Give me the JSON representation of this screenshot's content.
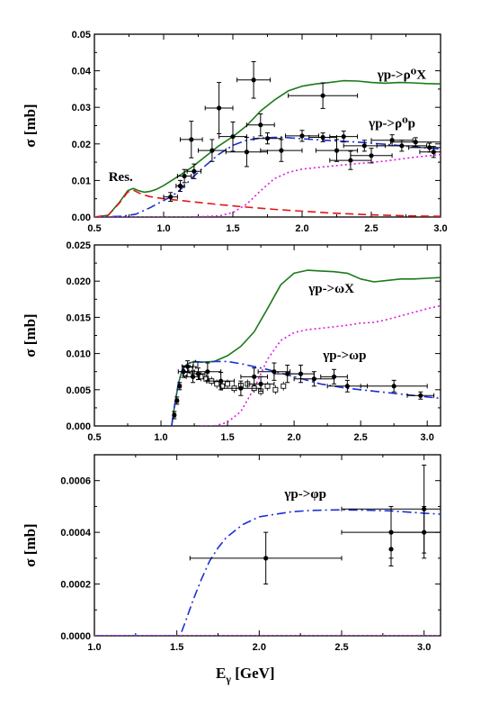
{
  "figure": {
    "xlabel_main": "E",
    "xlabel_sub": "γ",
    "xlabel_unit": " [GeV]"
  },
  "chart_data": [
    {
      "type": "line",
      "ylabel": "σ [mb]",
      "xlim": [
        0.5,
        3.0
      ],
      "ylim": [
        0,
        0.05
      ],
      "xticks": [
        "0.5",
        "1.0",
        "1.5",
        "2.0",
        "2.5",
        "3.0"
      ],
      "xtick_values": [
        0.5,
        1.0,
        1.5,
        2.0,
        2.5,
        3.0
      ],
      "yticks": [
        "0.00",
        "0.01",
        "0.02",
        "0.03",
        "0.04",
        "0.05"
      ],
      "ytick_values": [
        0,
        0.01,
        0.02,
        0.03,
        0.04,
        0.05
      ],
      "annotations": [
        {
          "text": "γp->ρ⁰X",
          "x": 2.72,
          "y": 0.0378
        },
        {
          "text": "γp->ρ⁰p",
          "x": 2.65,
          "y": 0.0245
        },
        {
          "text": "Res.",
          "x": 0.69,
          "y": 0.0098
        }
      ],
      "series": [
        {
          "color": "#1a7a1a",
          "style": "solid",
          "x": [
            0.5,
            0.6,
            0.68,
            0.74,
            0.78,
            0.82,
            0.86,
            0.9,
            0.95,
            1.0,
            1.1,
            1.2,
            1.3,
            1.4,
            1.5,
            1.6,
            1.7,
            1.8,
            1.9,
            2.0,
            2.1,
            2.2,
            2.3,
            2.4,
            2.5,
            2.6,
            2.7,
            2.8,
            2.9,
            3.0
          ],
          "y": [
            0.0,
            0.0005,
            0.004,
            0.0072,
            0.0078,
            0.0072,
            0.0068,
            0.007,
            0.0076,
            0.0086,
            0.011,
            0.0135,
            0.0165,
            0.0195,
            0.022,
            0.025,
            0.029,
            0.032,
            0.0345,
            0.0358,
            0.0364,
            0.0368,
            0.0373,
            0.0372,
            0.0368,
            0.0366,
            0.0368,
            0.0367,
            0.0365,
            0.0364
          ]
        },
        {
          "color": "#1a2fd6",
          "style": "dashdot",
          "x": [
            0.5,
            0.7,
            0.8,
            0.9,
            1.0,
            1.05,
            1.1,
            1.15,
            1.2,
            1.3,
            1.4,
            1.5,
            1.6,
            1.7,
            1.8,
            1.9,
            2.0,
            2.2,
            2.4,
            2.6,
            2.8,
            3.0
          ],
          "y": [
            0.0,
            0.0002,
            0.0008,
            0.0025,
            0.0045,
            0.0055,
            0.0068,
            0.0085,
            0.0105,
            0.014,
            0.0172,
            0.0196,
            0.021,
            0.0216,
            0.0218,
            0.0217,
            0.0214,
            0.0209,
            0.0205,
            0.0199,
            0.0192,
            0.0186
          ]
        },
        {
          "color": "#e01818",
          "style": "dashed",
          "x": [
            0.5,
            0.6,
            0.68,
            0.74,
            0.78,
            0.82,
            0.86,
            0.9,
            1.0,
            1.2,
            1.4,
            1.6,
            1.8,
            2.0,
            2.2,
            2.5,
            2.8,
            3.0
          ],
          "y": [
            0.0,
            0.0005,
            0.0038,
            0.0068,
            0.0074,
            0.0066,
            0.006,
            0.0056,
            0.005,
            0.0042,
            0.0034,
            0.0027,
            0.0021,
            0.0016,
            0.0011,
            0.0006,
            0.0003,
            0.0002
          ]
        },
        {
          "color": "#e018e0",
          "style": "dotted",
          "x": [
            0.5,
            1.2,
            1.4,
            1.5,
            1.6,
            1.7,
            1.8,
            1.9,
            2.0,
            2.2,
            2.4,
            2.6,
            2.8,
            3.0
          ],
          "y": [
            0.0,
            0.0,
            0.0003,
            0.0012,
            0.0035,
            0.0072,
            0.0105,
            0.0122,
            0.0131,
            0.0139,
            0.0146,
            0.0153,
            0.0163,
            0.0171
          ]
        }
      ],
      "points": [
        {
          "x": 1.05,
          "y": 0.0055,
          "ex": 0.05,
          "ey": 0.0012
        },
        {
          "x": 1.12,
          "y": 0.0085,
          "ex": 0.03,
          "ey": 0.0015
        },
        {
          "x": 1.15,
          "y": 0.0112,
          "ex": 0.05,
          "ey": 0.0018
        },
        {
          "x": 1.22,
          "y": 0.0125,
          "ex": 0.05,
          "ey": 0.002
        },
        {
          "x": 1.2,
          "y": 0.0212,
          "ex": 0.08,
          "ey": 0.005
        },
        {
          "x": 1.35,
          "y": 0.0182,
          "ex": 0.1,
          "ey": 0.003
        },
        {
          "x": 1.4,
          "y": 0.0298,
          "ex": 0.1,
          "ey": 0.007
        },
        {
          "x": 1.5,
          "y": 0.022,
          "ex": 0.1,
          "ey": 0.004
        },
        {
          "x": 1.6,
          "y": 0.0178,
          "ex": 0.15,
          "ey": 0.004
        },
        {
          "x": 1.65,
          "y": 0.0375,
          "ex": 0.12,
          "ey": 0.005
        },
        {
          "x": 1.7,
          "y": 0.0252,
          "ex": 0.1,
          "ey": 0.003
        },
        {
          "x": 1.75,
          "y": 0.0215,
          "ex": 0.1,
          "ey": 0.0015
        },
        {
          "x": 1.85,
          "y": 0.0182,
          "ex": 0.15,
          "ey": 0.003
        },
        {
          "x": 2.0,
          "y": 0.0222,
          "ex": 0.12,
          "ey": 0.0015
        },
        {
          "x": 2.15,
          "y": 0.0218,
          "ex": 0.1,
          "ey": 0.0012
        },
        {
          "x": 2.15,
          "y": 0.0332,
          "ex": 0.25,
          "ey": 0.0035
        },
        {
          "x": 2.25,
          "y": 0.0182,
          "ex": 0.15,
          "ey": 0.003
        },
        {
          "x": 2.3,
          "y": 0.022,
          "ex": 0.1,
          "ey": 0.0015
        },
        {
          "x": 2.35,
          "y": 0.0155,
          "ex": 0.15,
          "ey": 0.0025
        },
        {
          "x": 2.45,
          "y": 0.0195,
          "ex": 0.15,
          "ey": 0.0015
        },
        {
          "x": 2.5,
          "y": 0.0168,
          "ex": 0.15,
          "ey": 0.002
        },
        {
          "x": 2.65,
          "y": 0.021,
          "ex": 0.15,
          "ey": 0.0015
        },
        {
          "x": 2.72,
          "y": 0.0195,
          "ex": 0.18,
          "ey": 0.0015
        },
        {
          "x": 2.82,
          "y": 0.0205,
          "ex": 0.18,
          "ey": 0.0012
        },
        {
          "x": 2.92,
          "y": 0.019,
          "ex": 0.15,
          "ey": 0.0012
        },
        {
          "x": 2.95,
          "y": 0.0178,
          "ex": 0.1,
          "ey": 0.0015
        }
      ]
    },
    {
      "type": "line",
      "ylabel": "σ [mb]",
      "xlim": [
        0.5,
        3.1
      ],
      "ylim": [
        0,
        0.025
      ],
      "xticks": [
        "0.5",
        "1.0",
        "1.5",
        "2.0",
        "2.5",
        "3.0"
      ],
      "xtick_values": [
        0.5,
        1.0,
        1.5,
        2.0,
        2.5,
        3.0
      ],
      "yticks": [
        "0.000",
        "0.005",
        "0.010",
        "0.015",
        "0.020",
        "0.025"
      ],
      "ytick_values": [
        0,
        0.005,
        0.01,
        0.015,
        0.02,
        0.025
      ],
      "annotations": [
        {
          "text": "γp->ωX",
          "x": 2.28,
          "y": 0.0184
        },
        {
          "text": "γp->ωp",
          "x": 2.38,
          "y": 0.0092
        }
      ],
      "series": [
        {
          "color": "#1a7a1a",
          "style": "solid",
          "x": [
            1.08,
            1.1,
            1.13,
            1.16,
            1.2,
            1.25,
            1.3,
            1.4,
            1.5,
            1.6,
            1.7,
            1.8,
            1.9,
            2.0,
            2.1,
            2.2,
            2.3,
            2.4,
            2.5,
            2.6,
            2.7,
            2.8,
            2.9,
            3.0,
            3.1
          ],
          "y": [
            0.0,
            0.0025,
            0.0058,
            0.0078,
            0.0086,
            0.0089,
            0.0088,
            0.0089,
            0.0097,
            0.011,
            0.013,
            0.0162,
            0.0195,
            0.0211,
            0.0215,
            0.0214,
            0.0213,
            0.0211,
            0.0203,
            0.0199,
            0.0201,
            0.0203,
            0.0203,
            0.0204,
            0.0205
          ]
        },
        {
          "color": "#1a2fd6",
          "style": "dashdot",
          "x": [
            1.08,
            1.1,
            1.13,
            1.16,
            1.2,
            1.25,
            1.3,
            1.4,
            1.5,
            1.6,
            1.8,
            2.0,
            2.2,
            2.4,
            2.6,
            2.8,
            3.0,
            3.1
          ],
          "y": [
            0.0,
            0.0025,
            0.0058,
            0.0078,
            0.0086,
            0.0089,
            0.0088,
            0.0089,
            0.0089,
            0.0086,
            0.0078,
            0.0068,
            0.0058,
            0.0052,
            0.0048,
            0.0044,
            0.004,
            0.0038
          ]
        },
        {
          "color": "#e018e0",
          "style": "dotted",
          "x": [
            1.3,
            1.4,
            1.5,
            1.6,
            1.7,
            1.8,
            1.9,
            2.0,
            2.1,
            2.2,
            2.3,
            2.4,
            2.5,
            2.6,
            2.7,
            2.8,
            2.9,
            3.0,
            3.1
          ],
          "y": [
            0.0,
            0.0,
            0.0005,
            0.002,
            0.0052,
            0.0092,
            0.0118,
            0.0129,
            0.0133,
            0.0135,
            0.0137,
            0.0139,
            0.0142,
            0.0143,
            0.0147,
            0.0152,
            0.0157,
            0.0162,
            0.0166
          ]
        }
      ],
      "points": [
        {
          "x": 1.1,
          "y": 0.0015,
          "ex": 0.01,
          "ey": 0.0005
        },
        {
          "x": 1.12,
          "y": 0.0035,
          "ex": 0.01,
          "ey": 0.0005
        },
        {
          "x": 1.14,
          "y": 0.0055,
          "ex": 0.01,
          "ey": 0.0005
        },
        {
          "x": 1.17,
          "y": 0.0075,
          "ex": 0.04,
          "ey": 0.0008
        },
        {
          "x": 1.2,
          "y": 0.0082,
          "ex": 0.04,
          "ey": 0.0008
        },
        {
          "x": 1.24,
          "y": 0.0068,
          "ex": 0.05,
          "ey": 0.0008
        },
        {
          "x": 1.28,
          "y": 0.0072,
          "ex": 0.05,
          "ey": 0.0008
        },
        {
          "x": 1.35,
          "y": 0.0075,
          "ex": 0.1,
          "ey": 0.0012
        },
        {
          "x": 1.45,
          "y": 0.0062,
          "ex": 0.1,
          "ey": 0.0012
        },
        {
          "x": 1.6,
          "y": 0.0052,
          "ex": 0.15,
          "ey": 0.001
        },
        {
          "x": 1.7,
          "y": 0.0068,
          "ex": 0.1,
          "ey": 0.0012
        },
        {
          "x": 1.75,
          "y": 0.0058,
          "ex": 0.1,
          "ey": 0.001
        },
        {
          "x": 1.85,
          "y": 0.0075,
          "ex": 0.12,
          "ey": 0.0012
        },
        {
          "x": 1.95,
          "y": 0.0072,
          "ex": 0.1,
          "ey": 0.0012
        },
        {
          "x": 2.05,
          "y": 0.0072,
          "ex": 0.1,
          "ey": 0.0012
        },
        {
          "x": 2.15,
          "y": 0.0065,
          "ex": 0.15,
          "ey": 0.001
        },
        {
          "x": 2.3,
          "y": 0.0068,
          "ex": 0.1,
          "ey": 0.001
        },
        {
          "x": 2.4,
          "y": 0.0055,
          "ex": 0.15,
          "ey": 0.0008
        },
        {
          "x": 2.75,
          "y": 0.0055,
          "ex": 0.25,
          "ey": 0.0008
        },
        {
          "x": 2.95,
          "y": 0.0042,
          "ex": 0.1,
          "ey": 0.0005
        }
      ],
      "open_points": [
        {
          "x": 1.18,
          "y": 0.0072
        },
        {
          "x": 1.22,
          "y": 0.0078
        },
        {
          "x": 1.26,
          "y": 0.0085
        },
        {
          "x": 1.3,
          "y": 0.0068
        },
        {
          "x": 1.34,
          "y": 0.0065
        },
        {
          "x": 1.38,
          "y": 0.0062
        },
        {
          "x": 1.42,
          "y": 0.0058
        },
        {
          "x": 1.46,
          "y": 0.0055
        },
        {
          "x": 1.5,
          "y": 0.0058
        },
        {
          "x": 1.55,
          "y": 0.0052
        },
        {
          "x": 1.6,
          "y": 0.0056
        },
        {
          "x": 1.65,
          "y": 0.0058
        },
        {
          "x": 1.7,
          "y": 0.0052
        },
        {
          "x": 1.75,
          "y": 0.0048
        },
        {
          "x": 1.8,
          "y": 0.0055
        },
        {
          "x": 1.86,
          "y": 0.005
        },
        {
          "x": 1.92,
          "y": 0.0055
        }
      ]
    },
    {
      "type": "line",
      "ylabel": "σ [mb]",
      "xlim": [
        1.0,
        3.1
      ],
      "ylim": [
        0,
        0.0007
      ],
      "xticks": [
        "1.0",
        "1.5",
        "2.0",
        "2.5",
        "3.0"
      ],
      "xtick_values": [
        1.0,
        1.5,
        2.0,
        2.5,
        3.0
      ],
      "yticks": [
        "0.0000",
        "0.0002",
        "0.0004",
        "0.0006"
      ],
      "ytick_values": [
        0,
        0.0002,
        0.0004,
        0.0006
      ],
      "annotations": [
        {
          "text": "γp->φp",
          "x": 2.28,
          "y": 0.000532
        }
      ],
      "series": [
        {
          "color": "#1a2fd6",
          "style": "dashdot",
          "x": [
            1.0,
            1.52,
            1.55,
            1.6,
            1.65,
            1.7,
            1.75,
            1.8,
            1.9,
            2.0,
            2.1,
            2.2,
            2.3,
            2.4,
            2.5,
            2.6,
            2.8,
            3.0,
            3.1
          ],
          "y": [
            0.0,
            0.0,
            5e-05,
            0.00014,
            0.00022,
            0.00029,
            0.00034,
            0.00038,
            0.00043,
            0.00046,
            0.00047,
            0.00048,
            0.000484,
            0.000486,
            0.000487,
            0.000486,
            0.000483,
            0.000474,
            0.00047
          ]
        },
        {
          "color": "#e018e0",
          "style": "dotted",
          "x": [
            1.0,
            3.1
          ],
          "y": [
            0.0,
            0.0
          ]
        }
      ],
      "points": [
        {
          "x": 2.04,
          "y": 0.0003,
          "ex": 0.46,
          "ey": 0.0001
        },
        {
          "x": 2.8,
          "y": 0.0004,
          "ex": 0.3,
          "ey": 0.0001
        },
        {
          "x": 2.8,
          "y": 0.000335,
          "ex": 0.0,
          "ey": 6.5e-05
        },
        {
          "x": 3.0,
          "y": 0.00049,
          "ex": 0.5,
          "ey": 0.00017
        },
        {
          "x": 3.0,
          "y": 0.0004,
          "ex": 0.2,
          "ey": 0.0001
        }
      ]
    }
  ]
}
